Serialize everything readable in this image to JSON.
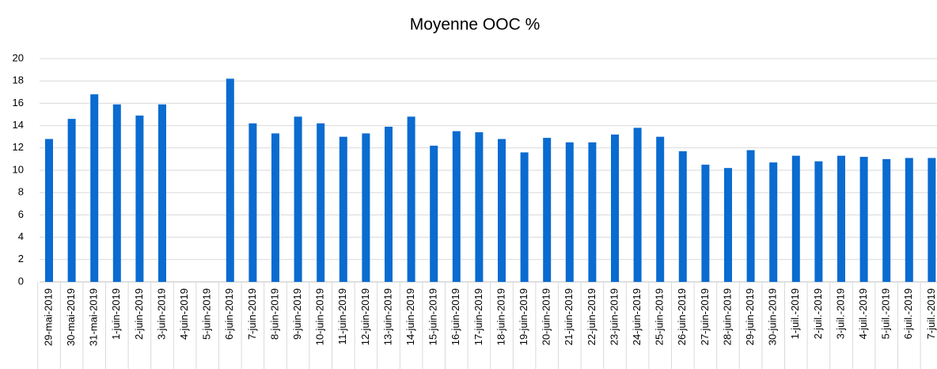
{
  "chart_data": {
    "type": "bar",
    "title": "Moyenne OOC %",
    "categories": [
      "29-mai-2019",
      "30-mai-2019",
      "31-mai-2019",
      "1-juin-2019",
      "2-juin-2019",
      "3-juin-2019",
      "4-juin-2019",
      "5-juin-2019",
      "6-juin-2019",
      "7-juin-2019",
      "8-juin-2019",
      "9-juin-2019",
      "10-juin-2019",
      "11-juin-2019",
      "12-juin-2019",
      "13-juin-2019",
      "14-juin-2019",
      "15-juin-2019",
      "16-juin-2019",
      "17-juin-2019",
      "18-juin-2019",
      "19-juin-2019",
      "20-juin-2019",
      "21-juin-2019",
      "22-juin-2019",
      "23-juin-2019",
      "24-juin-2019",
      "25-juin-2019",
      "26-juin-2019",
      "27-juin-2019",
      "28-juin-2019",
      "29-juin-2019",
      "30-juin-2019",
      "1-juil.-2019",
      "2-juil.-2019",
      "3-juil.-2019",
      "4-juil.-2019",
      "5-juil.-2019",
      "6-juil.-2019",
      "7-juil.-2019"
    ],
    "values": [
      12.8,
      14.6,
      16.8,
      15.9,
      14.9,
      15.9,
      null,
      null,
      18.2,
      14.2,
      13.3,
      14.8,
      14.2,
      13.0,
      13.3,
      13.9,
      14.8,
      12.2,
      13.5,
      13.4,
      12.8,
      11.6,
      12.9,
      12.5,
      12.5,
      13.2,
      13.8,
      13.0,
      11.7,
      10.5,
      10.2,
      11.8,
      10.7,
      11.3,
      10.8,
      11.3,
      11.2,
      11.0,
      11.1,
      11.1
    ],
    "color": "#0a6bd0",
    "ylim": [
      0,
      20
    ],
    "yticks": [
      0,
      2,
      4,
      6,
      8,
      10,
      12,
      14,
      16,
      18,
      20
    ],
    "grid": true
  }
}
